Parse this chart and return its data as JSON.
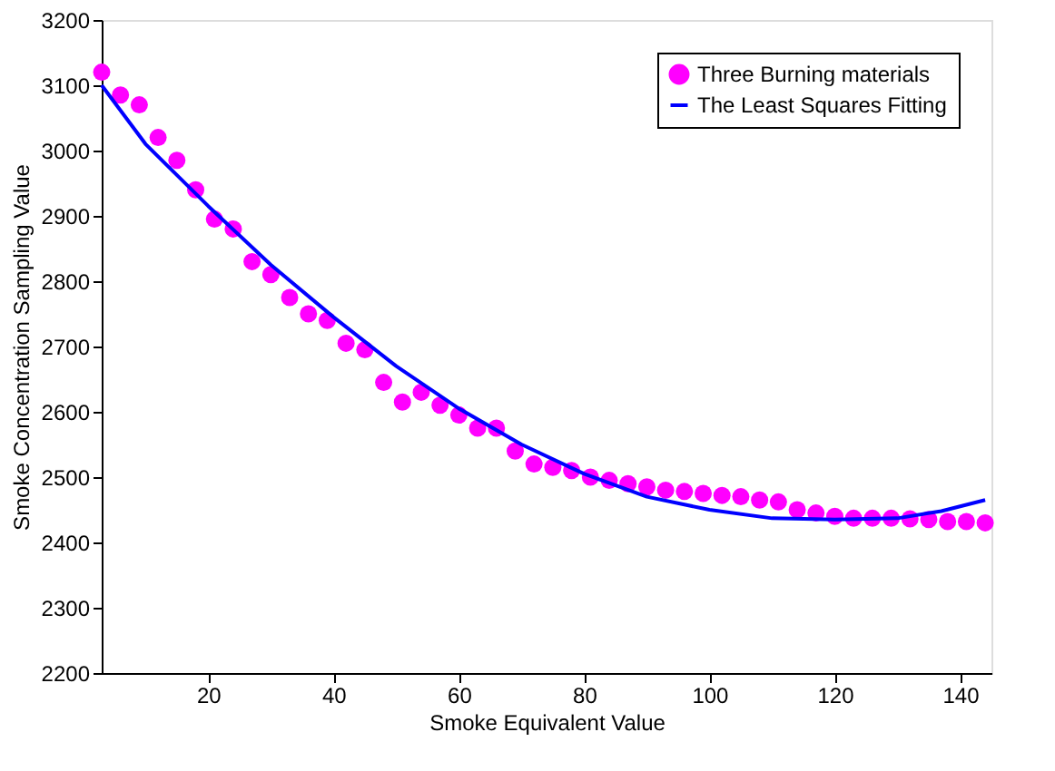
{
  "chart_data": {
    "type": "scatter",
    "xlabel": "Smoke Equivalent Value",
    "ylabel": "Smoke Concentration Sampling Value",
    "xlim": [
      3,
      145
    ],
    "ylim": [
      2200,
      3200
    ],
    "xticks": [
      20,
      40,
      60,
      80,
      100,
      120,
      140
    ],
    "yticks": [
      2200,
      2300,
      2400,
      2500,
      2600,
      2700,
      2800,
      2900,
      3000,
      3100,
      3200
    ],
    "grid": false,
    "legend": "top right",
    "series": [
      {
        "name": "Three Burning materials",
        "type": "scatter",
        "marker": "circle",
        "color": "#ff00ff",
        "x": [
          3,
          6,
          9,
          12,
          15,
          18,
          21,
          24,
          27,
          30,
          33,
          36,
          39,
          42,
          45,
          48,
          51,
          54,
          57,
          60,
          63,
          66,
          69,
          72,
          75,
          78,
          81,
          84,
          87,
          90,
          93,
          96,
          99,
          102,
          105,
          108,
          111,
          114,
          117,
          120,
          123,
          126,
          129,
          132,
          135,
          138,
          141,
          144
        ],
        "values": [
          3120,
          3085,
          3070,
          3020,
          2985,
          2940,
          2895,
          2880,
          2830,
          2810,
          2775,
          2750,
          2740,
          2705,
          2695,
          2645,
          2615,
          2630,
          2610,
          2595,
          2575,
          2575,
          2540,
          2520,
          2515,
          2510,
          2500,
          2495,
          2490,
          2485,
          2480,
          2478,
          2475,
          2472,
          2470,
          2465,
          2462,
          2450,
          2445,
          2440,
          2437,
          2437,
          2437,
          2436,
          2435,
          2432,
          2432,
          2430
        ]
      },
      {
        "name": "The Least Squares Fitting",
        "type": "line",
        "marker": "none",
        "line_style": "solid",
        "color": "#0000ff",
        "x": [
          3,
          10,
          20,
          30,
          40,
          50,
          60,
          70,
          80,
          90,
          100,
          110,
          120,
          130,
          137,
          144
        ],
        "values": [
          3100,
          3010,
          2915,
          2825,
          2745,
          2670,
          2605,
          2550,
          2505,
          2470,
          2450,
          2437,
          2435,
          2437,
          2448,
          2465
        ]
      }
    ]
  }
}
